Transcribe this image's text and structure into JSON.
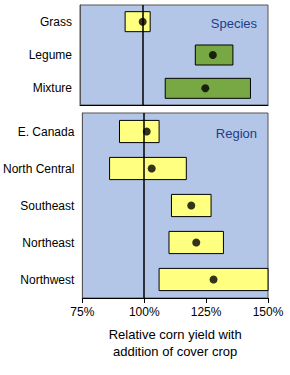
{
  "chart_data": [
    {
      "type": "range",
      "title": "Species",
      "orientation": "horizontal",
      "grid": false,
      "tick_labels": "y",
      "categories": [
        "Grass",
        "Legume",
        "Mixture"
      ],
      "low": [
        93,
        121,
        109
      ],
      "high": [
        103,
        136,
        143
      ],
      "mean": [
        100,
        128,
        125
      ],
      "colors": [
        "#ffff80",
        "#77a843",
        "#77a843"
      ],
      "xlim": [
        75,
        150
      ],
      "reference_line": 100
    },
    {
      "type": "range",
      "title": "Region",
      "orientation": "horizontal",
      "grid": false,
      "xlabel": "Relative corn yield with\naddition of cover crop",
      "categories": [
        "E. Canada",
        "North Central",
        "Southeast",
        "Northeast",
        "Northwest"
      ],
      "low": [
        90,
        86,
        111,
        110,
        106
      ],
      "high": [
        106,
        117,
        127,
        132,
        150
      ],
      "mean": [
        101,
        103,
        119,
        121,
        128
      ],
      "colors": [
        "#ffff80",
        "#ffff80",
        "#ffff80",
        "#ffff80",
        "#ffff80"
      ],
      "xlim": [
        75,
        150
      ],
      "xticks": [
        {
          "value": 75,
          "label": "75%"
        },
        {
          "value": 100,
          "label": "100%"
        },
        {
          "value": 125,
          "label": "125%"
        },
        {
          "value": 150,
          "label": "150%"
        }
      ],
      "reference_line": 100
    }
  ]
}
